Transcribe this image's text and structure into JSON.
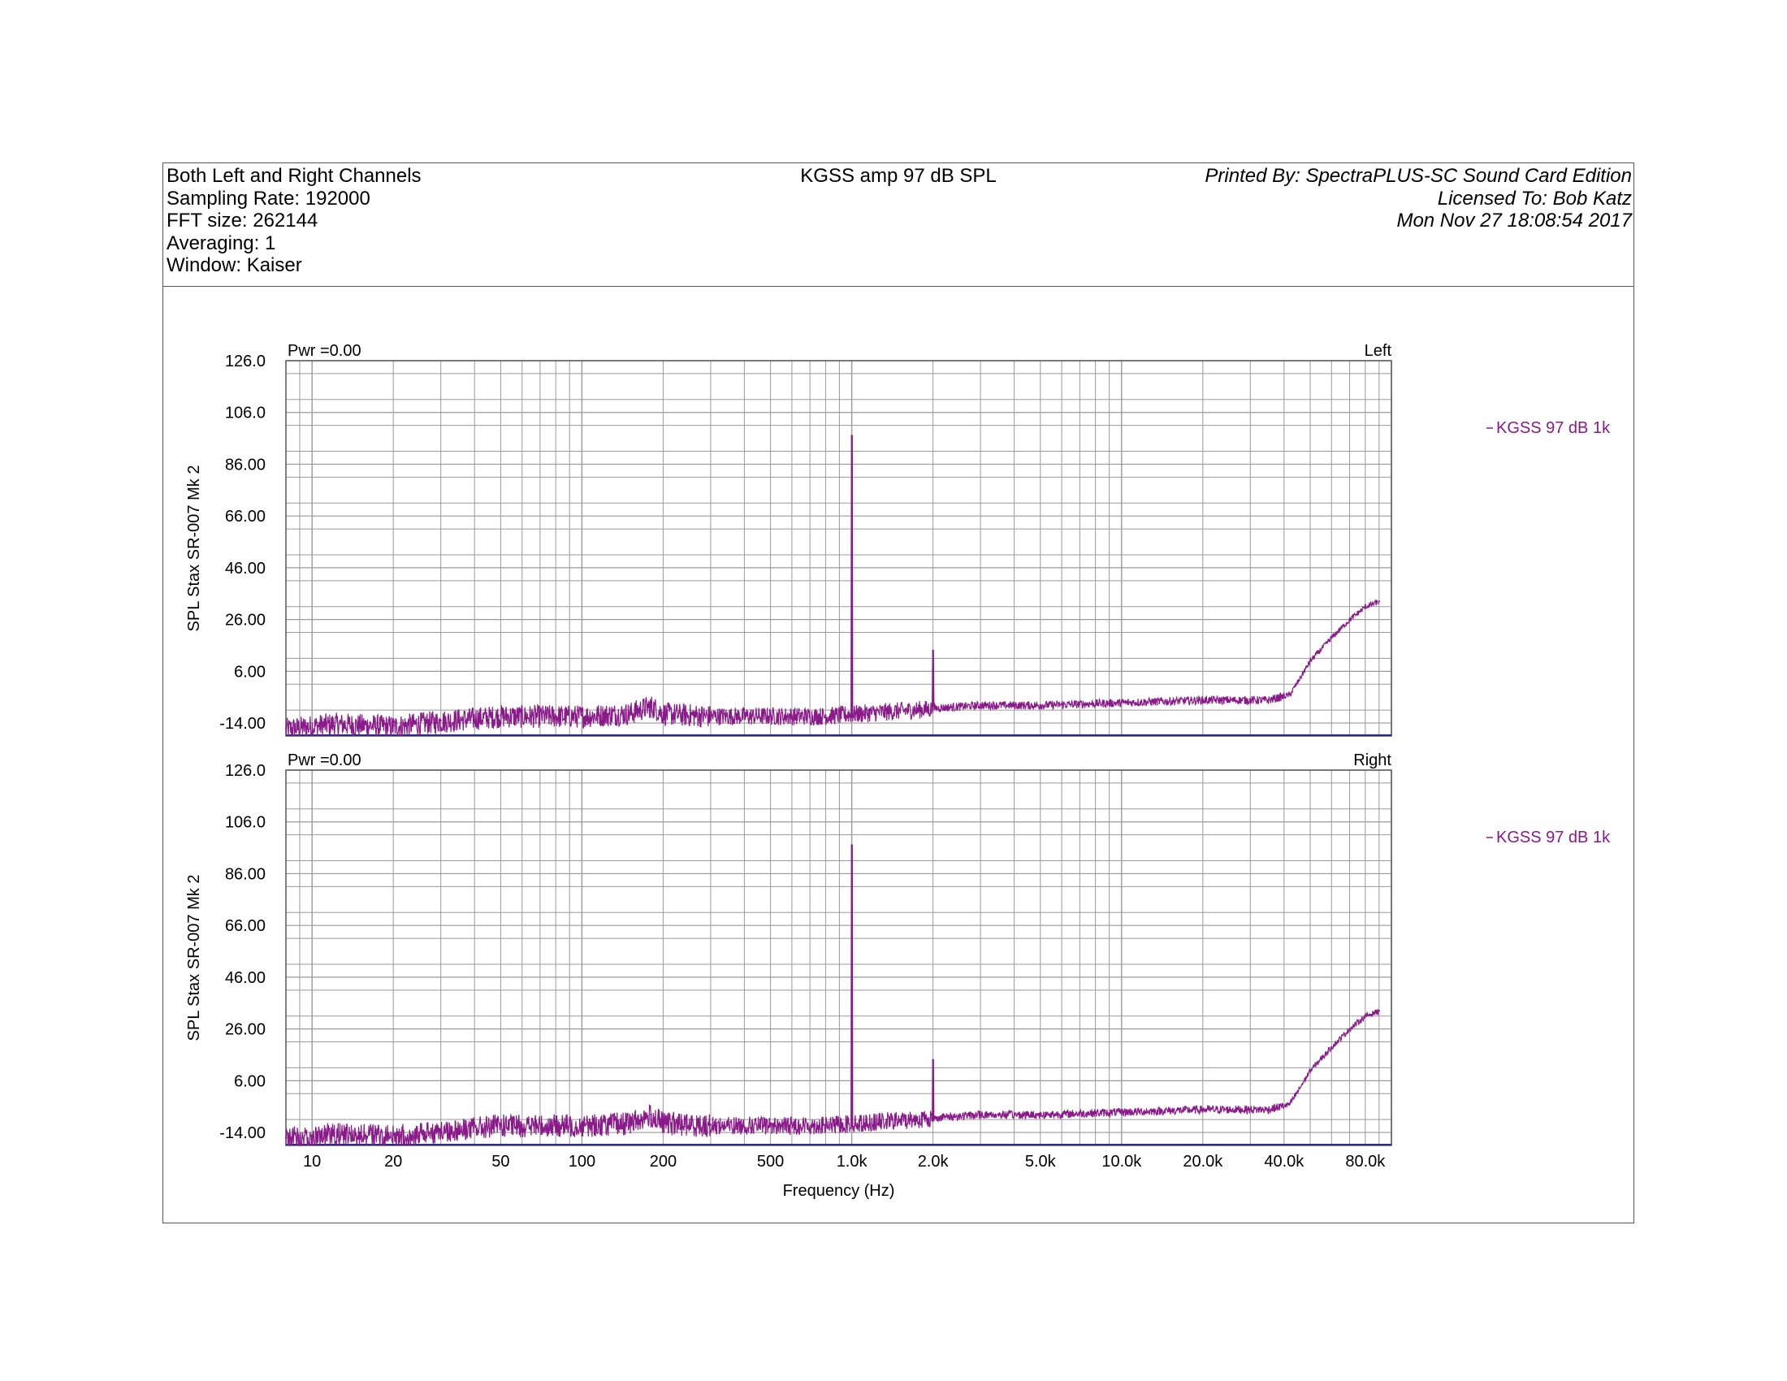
{
  "header": {
    "left_lines": [
      "Both Left and Right Channels",
      "Sampling Rate: 192000",
      "FFT size: 262144",
      "Averaging: 1",
      "Window: Kaiser"
    ],
    "title": "KGSS amp 97 dB SPL",
    "right_lines": [
      "Printed By: SpectraPLUS-SC Sound Card Edition",
      "Licensed To: Bob Katz",
      "Mon Nov 27 18:08:54 2017"
    ]
  },
  "colors": {
    "trace": "#8a1a8a",
    "grid": "#9a9a9a",
    "axis": "#555555",
    "baseline": "#2a2a8a"
  },
  "chart_data": [
    {
      "type": "line",
      "panel_title_left": "Pwr =0.00",
      "panel_title_right": "Left",
      "ylabel": "SPL Stax SR-007 Mk 2",
      "xlabel": "",
      "x_scale": "log",
      "xlim": [
        8,
        100000
      ],
      "ylim": [
        -19,
        126
      ],
      "yticks": [
        "126.0",
        "106.0",
        "86.00",
        "66.00",
        "46.00",
        "26.00",
        "6.00",
        "-14.00"
      ],
      "grid": true,
      "legend": "right",
      "series": [
        {
          "name": "KGSS 97 dB 1k",
          "color": "#8a1a8a",
          "x": [
            8,
            12,
            20,
            30,
            50,
            100,
            150,
            180,
            200,
            300,
            500,
            800,
            1000,
            1500,
            2000,
            3000,
            5000,
            10000,
            20000,
            35000,
            42000,
            45000,
            50000,
            60000,
            70000,
            80000,
            90000
          ],
          "y": [
            -16,
            -14,
            -15,
            -13,
            -11,
            -11,
            -10,
            -7,
            -10,
            -11,
            -11,
            -11,
            97,
            -9,
            14,
            -7,
            -7,
            -6,
            -5,
            -5,
            -3,
            2,
            10,
            19,
            26,
            31,
            33
          ]
        }
      ]
    },
    {
      "type": "line",
      "panel_title_left": "Pwr =0.00",
      "panel_title_right": "Right",
      "ylabel": "SPL Stax SR-007 Mk 2",
      "xlabel": "Frequency (Hz)",
      "x_scale": "log",
      "xlim": [
        8,
        100000
      ],
      "ylim": [
        -19,
        126
      ],
      "yticks": [
        "126.0",
        "106.0",
        "86.00",
        "66.00",
        "46.00",
        "26.00",
        "6.00",
        "-14.00"
      ],
      "xticks": [
        "10",
        "20",
        "50",
        "100",
        "200",
        "500",
        "1.0k",
        "2.0k",
        "5.0k",
        "10.0k",
        "20.0k",
        "40.0k",
        "80.0k"
      ],
      "grid": true,
      "legend": "right",
      "series": [
        {
          "name": "KGSS 97 dB 1k",
          "color": "#8a1a8a",
          "x": [
            8,
            12,
            20,
            30,
            50,
            100,
            150,
            180,
            200,
            300,
            500,
            800,
            1000,
            1500,
            2000,
            3000,
            5000,
            10000,
            20000,
            35000,
            42000,
            45000,
            50000,
            60000,
            70000,
            80000,
            90000
          ],
          "y": [
            -16,
            -14,
            -15,
            -13,
            -11,
            -11,
            -10,
            -7,
            -10,
            -11,
            -11,
            -11,
            97,
            -9,
            14,
            -7,
            -7,
            -6,
            -5,
            -5,
            -3,
            2,
            10,
            19,
            26,
            31,
            33
          ]
        }
      ]
    }
  ]
}
